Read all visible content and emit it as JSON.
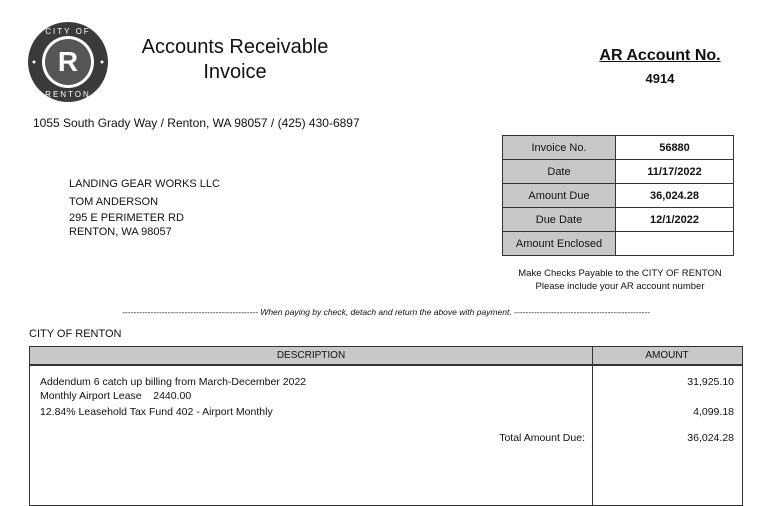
{
  "logo": {
    "top_text": "CITY OF",
    "bottom_text": "RENTON"
  },
  "header": {
    "title_line1": "Accounts Receivable",
    "title_line2": "Invoice",
    "ar_account_label": "AR Account No.",
    "ar_account_number": "4914"
  },
  "address": "1055 South Grady Way / Renton, WA 98057 / (425) 430-6897",
  "customer": [
    "LANDING GEAR WORKS LLC",
    "TOM ANDERSON",
    "295 E PERIMETER RD",
    "RENTON, WA 98057"
  ],
  "invoice_box": [
    {
      "label": "Invoice No.",
      "value": "56880"
    },
    {
      "label": "Date",
      "value": "11/17/2022"
    },
    {
      "label": "Amount Due",
      "value": "36,024.28"
    },
    {
      "label": "Due Date",
      "value": "12/1/2022"
    },
    {
      "label": "Amount Enclosed",
      "value": ""
    }
  ],
  "notes": [
    "Make Checks Payable to the CITY OF RENTON",
    "Please include your AR account number"
  ],
  "detach_text": "------------------------------------------------ When paying by check, detach and return the above with payment. ------------------------------------------------",
  "lower_org": "CITY OF RENTON",
  "table": {
    "headers": {
      "description": "DESCRIPTION",
      "amount": "AMOUNT"
    },
    "lines": [
      {
        "description": "Addendum 6 catch up billing from March-December 2022",
        "sub": "Monthly Airport Lease    2440.00",
        "amount": "31,925.10"
      },
      {
        "description": "12.84% Leasehold Tax Fund 402 - Airport Monthly",
        "amount": "4,099.18"
      }
    ],
    "total_label": "Total Amount Due:",
    "total_value": "36,024.28"
  },
  "colors": {
    "header_gray": "#c8c8c8",
    "logo_dark": "#3a3a3a"
  }
}
